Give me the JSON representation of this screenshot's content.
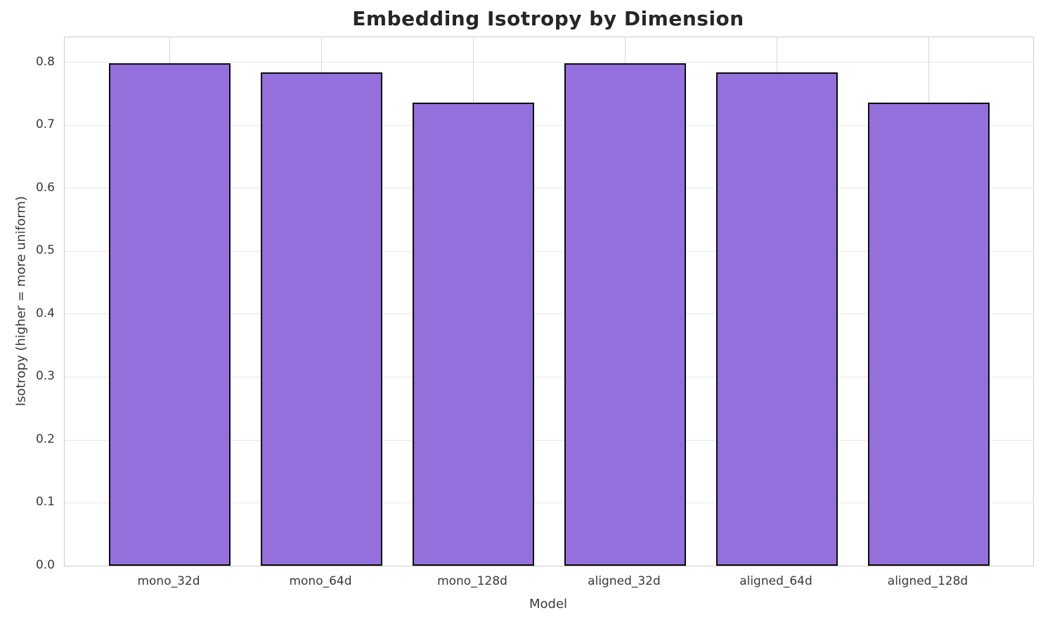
{
  "chart_data": {
    "type": "bar",
    "title": "Embedding Isotropy by Dimension",
    "xlabel": "Model",
    "ylabel": "Isotropy (higher = more uniform)",
    "categories": [
      "mono_32d",
      "mono_64d",
      "mono_128d",
      "aligned_32d",
      "aligned_64d",
      "aligned_128d"
    ],
    "values": [
      0.799,
      0.784,
      0.736,
      0.799,
      0.784,
      0.736
    ],
    "ylim": [
      0,
      0.84
    ],
    "yticks": [
      0.0,
      0.1,
      0.2,
      0.3,
      0.4,
      0.5,
      0.6,
      0.7,
      0.8
    ],
    "ytick_labels": [
      "0.0",
      "0.1",
      "0.2",
      "0.3",
      "0.4",
      "0.5",
      "0.6",
      "0.7",
      "0.8"
    ],
    "grid": true,
    "legend_position": "none",
    "bar_color": "#9370DB",
    "bar_edge_color": "#0a0a0a",
    "grid_color": "#e8e8e8",
    "spine_color": "#cccccc",
    "title_color": "#262626",
    "tick_color": "#3a3a3a"
  }
}
